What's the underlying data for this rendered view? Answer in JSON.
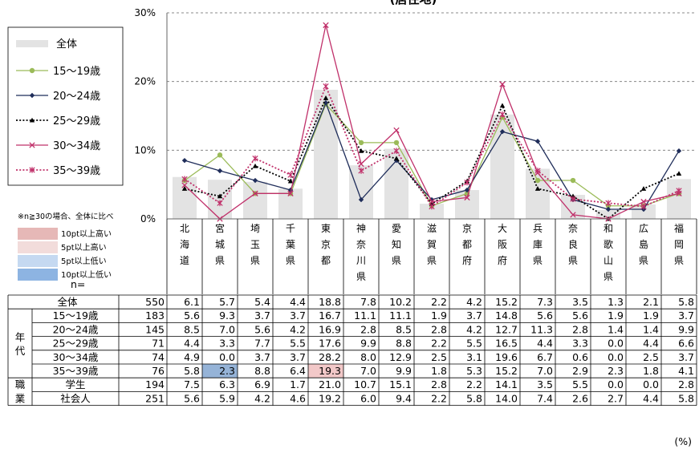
{
  "chart_data": {
    "type": "line",
    "title": "(居住地)",
    "yticks": [
      "30%",
      "20%",
      "10%",
      "0%"
    ],
    "ylim": [
      0,
      30
    ],
    "grid": true,
    "categories": [
      "北海道",
      "宮城県",
      "埼玉県",
      "千葉県",
      "東京都",
      "神奈川県",
      "愛知県",
      "滋賀県",
      "京都府",
      "大阪府",
      "兵庫県",
      "奈良県",
      "和歌山県",
      "広島県",
      "福岡県"
    ],
    "overall": {
      "name": "全体",
      "n": 550,
      "values": [
        6.1,
        5.7,
        5.4,
        4.4,
        18.8,
        7.8,
        10.2,
        2.2,
        4.2,
        15.2,
        7.3,
        3.5,
        1.3,
        2.1,
        5.8
      ],
      "color": "#e3e3e3"
    },
    "series": [
      {
        "name": "15～19歳",
        "n": 183,
        "values": [
          5.6,
          9.3,
          3.7,
          3.7,
          16.7,
          11.1,
          11.1,
          1.9,
          3.7,
          14.8,
          5.6,
          5.6,
          1.9,
          1.9,
          3.7
        ],
        "color": "#9bbb59",
        "marker": "circle",
        "dash": "solid"
      },
      {
        "name": "20～24歳",
        "n": 145,
        "values": [
          8.5,
          7.0,
          5.6,
          4.2,
          16.9,
          2.8,
          8.5,
          2.8,
          4.2,
          12.7,
          11.3,
          2.8,
          1.4,
          1.4,
          9.9
        ],
        "color": "#1f2d5a",
        "marker": "diamond",
        "dash": "solid"
      },
      {
        "name": "25～29歳",
        "n": 71,
        "values": [
          4.4,
          3.3,
          7.7,
          5.5,
          17.6,
          9.9,
          8.8,
          2.2,
          5.5,
          16.5,
          4.4,
          3.3,
          0.0,
          4.4,
          6.6
        ],
        "color": "#000000",
        "marker": "triangle",
        "dash": "dotted"
      },
      {
        "name": "30～34歳",
        "n": 74,
        "values": [
          4.9,
          0.0,
          3.7,
          3.7,
          28.2,
          8.0,
          12.9,
          2.5,
          3.1,
          19.6,
          6.7,
          0.6,
          0.0,
          2.5,
          3.7
        ],
        "color": "#c0306a",
        "marker": "x",
        "dash": "solid"
      },
      {
        "name": "35～39歳",
        "n": 76,
        "values": [
          5.8,
          2.3,
          8.8,
          6.4,
          19.3,
          7.0,
          9.9,
          1.8,
          5.3,
          15.2,
          7.0,
          2.9,
          2.3,
          1.8,
          4.1
        ],
        "color": "#c0306a",
        "marker": "star",
        "dash": "dotted"
      }
    ],
    "occupation": [
      {
        "name": "学生",
        "n": 194,
        "values": [
          7.5,
          6.3,
          6.9,
          1.7,
          21.0,
          10.7,
          15.1,
          2.8,
          2.2,
          14.1,
          3.5,
          5.5,
          0.0,
          0.0,
          2.8
        ]
      },
      {
        "name": "社会人",
        "n": 251,
        "values": [
          5.6,
          5.9,
          4.2,
          4.6,
          19.2,
          6.0,
          9.4,
          2.2,
          5.8,
          14.0,
          7.4,
          2.6,
          2.7,
          4.4,
          5.8
        ]
      }
    ],
    "highlights": [
      {
        "row": 4,
        "col": 1,
        "color": "#95b3d7"
      },
      {
        "row": 4,
        "col": 4,
        "color": "#f2c8c8"
      }
    ]
  },
  "table_labels": {
    "n_label": "n=",
    "age_group": "年代",
    "occupation_group": "職業",
    "unit": "(%)"
  },
  "key": {
    "note": "※n≧30の場合、全体に比べ",
    "items": [
      {
        "label": "10pt以上高い",
        "color": "#e6b8b7"
      },
      {
        "label": "5pt以上高い",
        "color": "#f2dcdb"
      },
      {
        "label": "5pt以上低い",
        "color": "#c5d9f1"
      },
      {
        "label": "10pt以上低い",
        "color": "#8db4e2"
      }
    ]
  }
}
